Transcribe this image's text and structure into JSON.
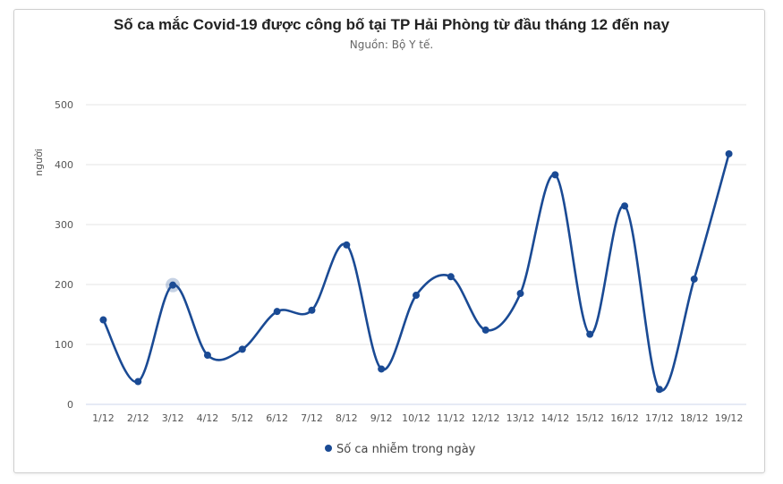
{
  "chart_data": {
    "type": "line",
    "title": "Số ca mắc Covid-19 được công bố tại TP Hải Phòng từ đầu tháng 12 đến nay",
    "subtitle": "Nguồn: Bộ Y tế.",
    "ylabel": "người",
    "xlabel": "",
    "ylim": [
      0,
      500
    ],
    "yticks": [
      0,
      100,
      200,
      300,
      400,
      500
    ],
    "grid": true,
    "legend_position": "bottom",
    "categories": [
      "1/12",
      "2/12",
      "3/12",
      "4/12",
      "5/12",
      "6/12",
      "7/12",
      "8/12",
      "9/12",
      "10/12",
      "11/12",
      "12/12",
      "13/12",
      "14/12",
      "15/12",
      "16/12",
      "17/12",
      "18/12",
      "19/12"
    ],
    "series": [
      {
        "name": "Số ca nhiễm trong ngày",
        "color": "#1a4a94",
        "values": [
          141,
          38,
          199,
          82,
          92,
          155,
          157,
          266,
          59,
          182,
          213,
          124,
          185,
          383,
          117,
          331,
          25,
          209,
          418
        ]
      }
    ],
    "highlighted_point_index": 2
  }
}
